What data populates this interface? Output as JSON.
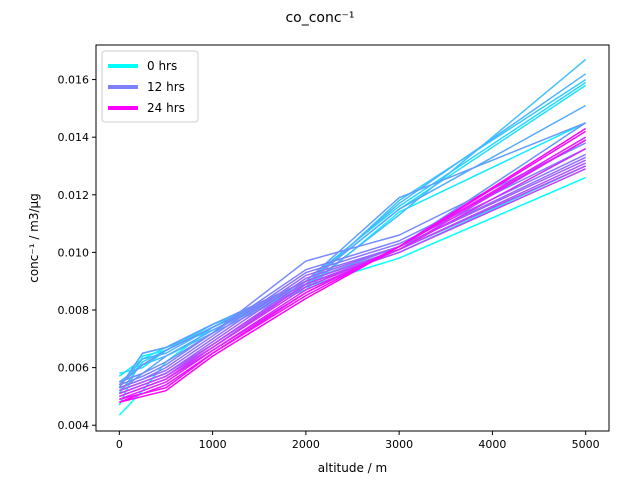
{
  "chart_data": {
    "type": "line",
    "title": "co_conc⁻¹",
    "xlabel": "altitude / m",
    "ylabel": "conc⁻¹ / m3/µg",
    "xlim": [
      -250,
      5250
    ],
    "ylim": [
      0.0038,
      0.0172
    ],
    "x_ticks": [
      0,
      1000,
      2000,
      3000,
      4000,
      5000
    ],
    "x_tick_labels": [
      "0",
      "1000",
      "2000",
      "3000",
      "4000",
      "5000"
    ],
    "y_ticks": [
      0.004,
      0.006,
      0.008,
      0.01,
      0.012,
      0.014,
      0.016
    ],
    "y_tick_labels": [
      "0.004",
      "0.006",
      "0.008",
      "0.010",
      "0.012",
      "0.014",
      "0.016"
    ],
    "grid": false,
    "legend_position": "top-left",
    "legend": [
      {
        "label": "0 hrs",
        "color": "#00ffff"
      },
      {
        "label": "12 hrs",
        "color": "#7f80ff"
      },
      {
        "label": "24 hrs",
        "color": "#ff00ff"
      }
    ],
    "x": [
      0,
      250,
      500,
      1000,
      2000,
      3000,
      5000
    ],
    "series": [
      {
        "color": "#00ffff",
        "values": [
          0.00435,
          0.0052,
          0.0062,
          0.0074,
          0.0088,
          0.0098,
          0.0126
        ]
      },
      {
        "color": "#0bf4ff",
        "values": [
          0.0047,
          0.0064,
          0.0066,
          0.0075,
          0.0089,
          0.01,
          0.013
        ]
      },
      {
        "color": "#15eaff",
        "values": [
          0.0057,
          0.0063,
          0.0067,
          0.0075,
          0.0087,
          0.0114,
          0.0145
        ]
      },
      {
        "color": "#20dfff",
        "values": [
          0.0058,
          0.006,
          0.0066,
          0.0075,
          0.0089,
          0.0115,
          0.0158
        ]
      },
      {
        "color": "#2ad5ff",
        "values": [
          0.0051,
          0.0062,
          0.0066,
          0.0074,
          0.009,
          0.0116,
          0.0159
        ]
      },
      {
        "color": "#35caff",
        "values": [
          0.0053,
          0.0065,
          0.0067,
          0.0073,
          0.0088,
          0.0118,
          0.016
        ]
      },
      {
        "color": "#40bfff",
        "values": [
          0.0055,
          0.0061,
          0.0064,
          0.0072,
          0.0088,
          0.0113,
          0.0167
        ]
      },
      {
        "color": "#4ab5ff",
        "values": [
          0.0054,
          0.0063,
          0.0065,
          0.0074,
          0.0089,
          0.0117,
          0.0162
        ]
      },
      {
        "color": "#55aaff",
        "values": [
          0.0052,
          0.0058,
          0.0064,
          0.0073,
          0.0089,
          0.0115,
          0.0151
        ]
      },
      {
        "color": "#609fff",
        "values": [
          0.0053,
          0.0065,
          0.0067,
          0.0075,
          0.009,
          0.0119,
          0.0145
        ]
      },
      {
        "color": "#6a95ff",
        "values": [
          0.0054,
          0.0061,
          0.0066,
          0.0074,
          0.009,
          0.0102,
          0.0145
        ]
      },
      {
        "color": "#758aff",
        "values": [
          0.0055,
          0.0058,
          0.0062,
          0.0072,
          0.0097,
          0.0106,
          0.0138
        ]
      },
      {
        "color": "#7f80ff",
        "values": [
          0.0054,
          0.0057,
          0.0061,
          0.0072,
          0.0094,
          0.0104,
          0.0136
        ]
      },
      {
        "color": "#8a75ff",
        "values": [
          0.0053,
          0.0056,
          0.006,
          0.0071,
          0.0093,
          0.0103,
          0.0134
        ]
      },
      {
        "color": "#956aff",
        "values": [
          0.0053,
          0.0056,
          0.0059,
          0.007,
          0.0092,
          0.0102,
          0.0133
        ]
      },
      {
        "color": "#9f60ff",
        "values": [
          0.0052,
          0.0055,
          0.0058,
          0.0069,
          0.0091,
          0.0102,
          0.0132
        ]
      },
      {
        "color": "#aa55ff",
        "values": [
          0.0052,
          0.0055,
          0.0058,
          0.0068,
          0.009,
          0.0101,
          0.0131
        ]
      },
      {
        "color": "#b54aff",
        "values": [
          0.0051,
          0.0054,
          0.0057,
          0.0068,
          0.0089,
          0.0101,
          0.013
        ]
      },
      {
        "color": "#bf40ff",
        "values": [
          0.0051,
          0.0054,
          0.0057,
          0.0067,
          0.0089,
          0.01,
          0.0129
        ]
      },
      {
        "color": "#ca35ff",
        "values": [
          0.005,
          0.0053,
          0.0056,
          0.0067,
          0.0088,
          0.0101,
          0.0139
        ]
      },
      {
        "color": "#d52aff",
        "values": [
          0.005,
          0.0053,
          0.0056,
          0.0066,
          0.0087,
          0.0101,
          0.0136
        ]
      },
      {
        "color": "#df20ff",
        "values": [
          0.0049,
          0.0052,
          0.0055,
          0.0066,
          0.0086,
          0.0102,
          0.014
        ]
      },
      {
        "color": "#ea15ff",
        "values": [
          0.0049,
          0.0051,
          0.0054,
          0.0065,
          0.0086,
          0.0102,
          0.0139
        ]
      },
      {
        "color": "#f40bff",
        "values": [
          0.0048,
          0.0051,
          0.0053,
          0.0065,
          0.0085,
          0.0102,
          0.0142
        ]
      },
      {
        "color": "#ff00ff",
        "values": [
          0.0048,
          0.005,
          0.0052,
          0.0064,
          0.0084,
          0.0102,
          0.0143
        ]
      }
    ]
  }
}
